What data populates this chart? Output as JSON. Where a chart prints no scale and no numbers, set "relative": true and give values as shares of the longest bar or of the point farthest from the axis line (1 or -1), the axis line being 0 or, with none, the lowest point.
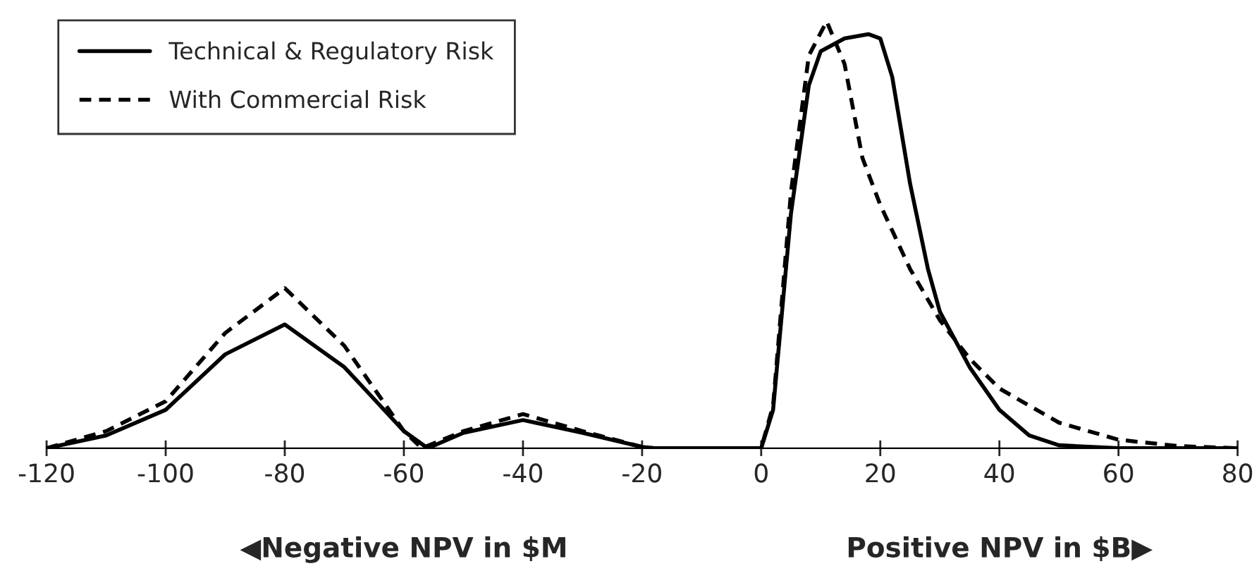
{
  "chart_data": {
    "type": "line",
    "relative": true,
    "xlim": [
      -120,
      80
    ],
    "xticks": [
      -120,
      -100,
      -80,
      -60,
      -40,
      -20,
      0,
      20,
      40,
      60,
      80
    ],
    "legend": "top left",
    "grid": false,
    "marker": "none",
    "annotations": [
      "◀Negative NPV in $M",
      "Positive NPV in $B▶"
    ],
    "series": [
      {
        "name": "Technical & Regulatory Risk",
        "color": "#000000",
        "line_style": "solid",
        "x": [
          -120,
          -110,
          -100,
          -90,
          -80,
          -70,
          -60,
          -56,
          -50,
          -40,
          -30,
          -20,
          -18,
          0,
          2,
          5,
          8,
          10,
          14,
          18,
          20,
          22,
          25,
          28,
          30,
          35,
          40,
          45,
          50,
          60,
          80
        ],
        "values": [
          0,
          0.03,
          0.09,
          0.22,
          0.29,
          0.19,
          0.04,
          0,
          0.036,
          0.066,
          0.036,
          0.003,
          0,
          0,
          0.09,
          0.55,
          0.85,
          0.93,
          0.96,
          0.97,
          0.96,
          0.87,
          0.62,
          0.42,
          0.32,
          0.19,
          0.09,
          0.03,
          0.007,
          0,
          0
        ]
      },
      {
        "name": "With Commercial Risk",
        "color": "#000000",
        "line_style": "dashed",
        "x": [
          -120,
          -110,
          -100,
          -90,
          -80,
          -70,
          -60,
          -57,
          -50,
          -40,
          -30,
          -20,
          -18,
          0,
          2,
          5,
          8,
          11,
          14,
          17,
          20,
          25,
          30,
          35,
          40,
          50,
          60,
          70,
          80
        ],
        "values": [
          0,
          0.04,
          0.11,
          0.27,
          0.375,
          0.24,
          0.04,
          0,
          0.04,
          0.08,
          0.04,
          0.003,
          0,
          0,
          0.1,
          0.6,
          0.92,
          1.0,
          0.9,
          0.68,
          0.57,
          0.42,
          0.3,
          0.21,
          0.14,
          0.06,
          0.02,
          0.005,
          0
        ]
      }
    ]
  }
}
